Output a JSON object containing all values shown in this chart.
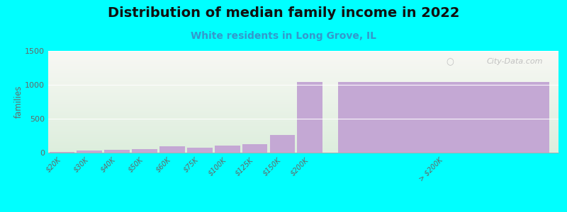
{
  "title": "Distribution of median family income in 2022",
  "subtitle": "White residents in Long Grove, IL",
  "categories": [
    "$20K",
    "$30K",
    "$40K",
    "$50K",
    "$60K",
    "$75K",
    "$100K",
    "$125K",
    "$150K",
    "$200K",
    "> $200K"
  ],
  "values": [
    10,
    28,
    40,
    48,
    90,
    75,
    100,
    125,
    265,
    1040,
    1040
  ],
  "bar_color": "#c4a8d4",
  "background_color": "#00FFFF",
  "plot_bg_top": "#f8f8f4",
  "plot_bg_bottom": "#ddeedd",
  "ylabel": "families",
  "ylim": [
    0,
    1500
  ],
  "yticks": [
    0,
    500,
    1000,
    1500
  ],
  "title_fontsize": 14,
  "subtitle_fontsize": 10,
  "watermark": "City-Data.com"
}
